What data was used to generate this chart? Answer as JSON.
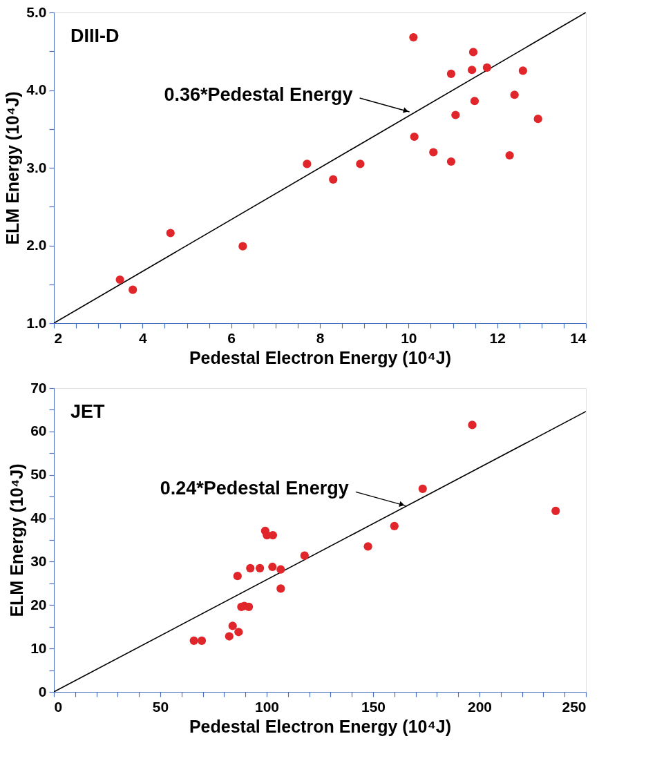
{
  "chart_data": [
    {
      "type": "scatter",
      "xlabel": "Pedestal Electron Energy (10⁴J)",
      "ylabel": "ELM Energy (10⁴J)",
      "xlim": [
        2,
        14
      ],
      "ylim": [
        1,
        5
      ],
      "xticks": [
        2,
        {
          "value": 2.5,
          "label": null
        },
        {
          "value": 3,
          "label": null
        },
        {
          "value": 3.5,
          "label": null
        },
        4,
        {
          "value": 4.5,
          "label": null
        },
        {
          "value": 5,
          "label": null
        },
        {
          "value": 5.5,
          "label": null
        },
        6,
        {
          "value": 6.5,
          "label": null
        },
        {
          "value": 7,
          "label": null
        },
        {
          "value": 7.5,
          "label": null
        },
        8,
        {
          "value": 8.5,
          "label": null
        },
        {
          "value": 9,
          "label": null
        },
        {
          "value": 9.5,
          "label": null
        },
        10,
        {
          "value": 10.5,
          "label": null
        },
        {
          "value": 11,
          "label": null
        },
        {
          "value": 11.5,
          "label": null
        },
        12,
        {
          "value": 12.5,
          "label": null
        },
        {
          "value": 13,
          "label": null
        },
        {
          "value": 13.5,
          "label": null
        },
        14
      ],
      "yticks": [
        {
          "value": 1,
          "label": "1.0"
        },
        {
          "value": 1.5,
          "label": null
        },
        {
          "value": 2,
          "label": "2.0"
        },
        {
          "value": 2.5,
          "label": null
        },
        {
          "value": 3,
          "label": "3.0"
        },
        {
          "value": 3.5,
          "label": null
        },
        {
          "value": 4,
          "label": "4.0"
        },
        {
          "value": 4.5,
          "label": null
        },
        {
          "value": 5,
          "label": "5.0"
        }
      ],
      "grid": false,
      "annotations": [
        "DIII-D",
        {
          "text": "0.36*Pedestal Energy",
          "x": 10.02,
          "y": 3.72
        }
      ],
      "series": [
        {
          "type": "line",
          "color": "#000000",
          "marker": "none",
          "line_style": "solid",
          "x": [
            2,
            14
          ],
          "values": [
            1,
            5
          ]
        },
        {
          "color": "#e0262a",
          "marker": "circle",
          "x": [
            3.49,
            3.78,
            4.63,
            6.26,
            7.71,
            8.3,
            8.91,
            10.11,
            10.13,
            10.56,
            10.96,
            10.96,
            11.06,
            11.43,
            11.46,
            11.49,
            11.77,
            12.28,
            12.39,
            12.58,
            12.92
          ],
          "values": [
            1.56,
            1.43,
            2.16,
            1.99,
            3.05,
            2.85,
            3.05,
            4.68,
            3.4,
            3.2,
            3.08,
            4.21,
            3.68,
            4.26,
            4.49,
            3.86,
            4.29,
            3.16,
            3.94,
            4.25,
            3.63
          ]
        }
      ]
    },
    {
      "type": "scatter",
      "xlabel": "Pedestal Electron Energy (10⁴J)",
      "ylabel": "ELM Energy (10⁴J)",
      "xlim": [
        0,
        250
      ],
      "ylim": [
        0,
        70
      ],
      "xticks": [
        0,
        {
          "value": 10,
          "label": null
        },
        {
          "value": 20,
          "label": null
        },
        {
          "value": 30,
          "label": null
        },
        {
          "value": 40,
          "label": null
        },
        50,
        {
          "value": 60,
          "label": null
        },
        {
          "value": 70,
          "label": null
        },
        {
          "value": 80,
          "label": null
        },
        {
          "value": 90,
          "label": null
        },
        100,
        {
          "value": 110,
          "label": null
        },
        {
          "value": 120,
          "label": null
        },
        {
          "value": 130,
          "label": null
        },
        {
          "value": 140,
          "label": null
        },
        150,
        {
          "value": 160,
          "label": null
        },
        {
          "value": 170,
          "label": null
        },
        {
          "value": 180,
          "label": null
        },
        {
          "value": 190,
          "label": null
        },
        200,
        {
          "value": 210,
          "label": null
        },
        {
          "value": 220,
          "label": null
        },
        {
          "value": 230,
          "label": null
        },
        {
          "value": 240,
          "label": null
        },
        250
      ],
      "yticks": [
        0,
        {
          "value": 5,
          "label": null
        },
        10,
        {
          "value": 15,
          "label": null
        },
        20,
        {
          "value": 25,
          "label": null
        },
        30,
        {
          "value": 35,
          "label": null
        },
        40,
        {
          "value": 45,
          "label": null
        },
        50,
        {
          "value": 55,
          "label": null
        },
        60,
        {
          "value": 65,
          "label": null
        },
        70
      ],
      "grid": false,
      "annotations": [
        "JET",
        {
          "text": "0.24*Pedestal Energy",
          "x": 165.2,
          "y": 42.9
        }
      ],
      "series": [
        {
          "type": "line",
          "color": "#000000",
          "marker": "none",
          "line_style": "solid",
          "x": [
            0,
            250
          ],
          "values": [
            0,
            64.6
          ]
        },
        {
          "color": "#e0262a",
          "marker": "circle",
          "x": [
            65.8,
            69.5,
            82.4,
            84.0,
            86.8,
            86.3,
            88.1,
            89.5,
            91.6,
            92.3,
            96.8,
            99.3,
            100.1,
            102.9,
            102.7,
            106.6,
            106.6,
            117.8,
            147.6,
            160.0,
            173.3,
            196.6,
            235.8
          ],
          "values": [
            11.8,
            11.8,
            12.8,
            15.2,
            13.8,
            26.7,
            19.6,
            19.8,
            19.6,
            28.5,
            28.5,
            37.1,
            36.1,
            36.1,
            28.8,
            28.2,
            23.8,
            31.4,
            33.5,
            38.2,
            46.8,
            61.5,
            41.7
          ]
        }
      ]
    }
  ]
}
